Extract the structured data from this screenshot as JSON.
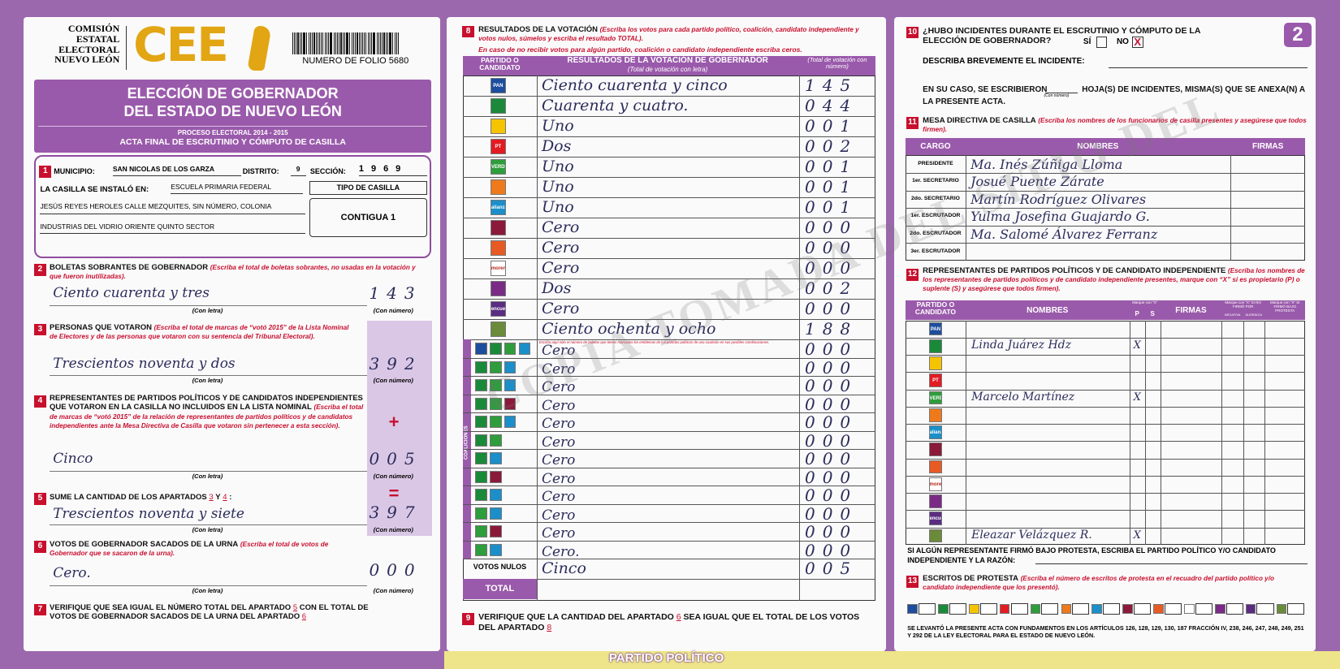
{
  "header": {
    "org_lines": [
      "COMISIÓN",
      "ESTATAL",
      "ELECTORAL",
      "NUEVO LEÓN"
    ],
    "logo": "CEE",
    "folio": "NUMERO DE FOLIO 5680",
    "page_number": "2"
  },
  "title": {
    "lines": [
      "ELECCIÓN DE GOBERNADOR",
      "DEL ESTADO DE NUEVO LEÓN"
    ],
    "process": "PROCESO ELECTORAL 2014 - 2015",
    "act": "ACTA FINAL DE ESCRUTINIO Y CÓMPUTO DE CASILLA"
  },
  "captions": {
    "letter": "(Con letra)",
    "number": "(Con número)"
  },
  "s1": {
    "number": "1",
    "municipio_label": "MUNICIPIO:",
    "municipio": "SAN NICOLAS DE LOS GARZA",
    "distrito_label": "DISTRITO:",
    "distrito": "9",
    "seccion_label": "SECCIÓN:",
    "seccion": "1969",
    "installed_label": "LA CASILLA SE INSTALÓ EN:",
    "address": [
      "ESCUELA PRIMARIA FEDERAL",
      "JESÚS REYES HEROLES CALLE MEZQUITES, SIN NÚMERO, COLONIA",
      "INDUSTRIAS DEL VIDRIO ORIENTE QUINTO SECTOR"
    ],
    "type_label": "TIPO DE CASILLA",
    "type": "CONTIGUA 1"
  },
  "s2": {
    "number": "2",
    "title": "BOLETAS SOBRANTES DE GOBERNADOR",
    "instruction": "(Escriba el total de boletas sobrantes, no usadas en la votación y que fueron inutilizadas).",
    "letter": "Ciento cuarenta y tres",
    "value": "143"
  },
  "s3": {
    "number": "3",
    "title": "PERSONAS QUE VOTARON",
    "instruction": "(Escriba el total de marcas de “votó 2015” de la Lista Nominal de Electores y de las personas que votaron con su sentencia del Tribunal Electoral).",
    "letter": "Trescientos noventa y dos",
    "value": "392"
  },
  "s4": {
    "number": "4",
    "title": "REPRESENTANTES DE PARTIDOS POLÍTICOS Y DE CANDIDATOS INDEPENDIENTES QUE VOTARON EN LA CASILLA NO INCLUIDOS EN LA LISTA NOMINAL",
    "instruction": "(Escriba el total de marcas de “votó 2015” de la relación de representantes de partidos políticos y de candidatos independientes ante la Mesa Directiva de Casilla que votaron sin pertenecer a esta sección).",
    "sign": "+",
    "letter": "Cinco",
    "value": "005"
  },
  "s5": {
    "number": "5",
    "text_parts": [
      "SUME LA CANTIDAD DE LOS APARTADOS",
      "3",
      "Y",
      "4",
      ":"
    ],
    "sign": "=",
    "letter": "Trescientos noventa y siete",
    "value": "397"
  },
  "s6": {
    "number": "6",
    "title": "VOTOS DE GOBERNADOR SACADOS DE LA URNA",
    "instruction": "(Escriba el total de votos de Gobernador que se sacaron de la urna).",
    "letter": "Cero.",
    "value": "000"
  },
  "s7": {
    "number": "7",
    "text_parts": [
      "VERIFIQUE QUE SEA IGUAL EL NÚMERO TOTAL DEL APARTADO",
      "5",
      "CON EL TOTAL DE VOTOS DE GOBERNADOR SACADOS DE LA URNA DEL APARTADO",
      "6"
    ]
  },
  "s8": {
    "number": "8",
    "title": "RESULTADOS DE LA VOTACIÓN",
    "instruction": "(Escriba los votos para cada partido político, coalición, candidato independiente y votos nulos, súmelos y escriba el resultado TOTAL).",
    "note": "En caso de no recibir votos para algún partido, coalición o candidato independiente escriba ceros.",
    "headers": {
      "party": "PARTIDO O CANDIDATO",
      "result": "RESULTADOS DE LA VOTACIÓN DE GOBERNADOR",
      "result_sub": "(Total de votación con letra)",
      "number": "(Total de votación con número)"
    },
    "parties": [
      {
        "logo": "PAN",
        "letter": "Ciento cuarenta y cinco",
        "value": "145"
      },
      {
        "letter": "Cuarenta y cuatro.",
        "value": "044"
      },
      {
        "letter": "Uno",
        "value": "001"
      },
      {
        "logo": "PT",
        "letter": "Dos",
        "value": "002"
      },
      {
        "logo": "VERDE",
        "letter": "Uno",
        "value": "001"
      },
      {
        "letter": "Uno",
        "value": "001"
      },
      {
        "logo": "alianza",
        "letter": "Uno",
        "value": "001"
      },
      {
        "letter": "Cero",
        "value": "000"
      },
      {
        "letter": "Cero",
        "value": "000"
      },
      {
        "logo": "morena",
        "letter": "Cero",
        "value": "000"
      },
      {
        "letter": "Dos",
        "value": "002"
      },
      {
        "logo": "encuentro social",
        "letter": "Cero",
        "value": "000"
      },
      {
        "letter": "Ciento ochenta y ocho",
        "value": "188"
      }
    ],
    "coalition_note": "Escriba aquí sólo el número de boletas que tienen marcados los emblemas de los partidos políticos de una coalición en sus posibles combinaciones.",
    "coalition_label": "COALICIONES",
    "coalitions": [
      {
        "letter": "Cero",
        "value": "000"
      },
      {
        "letter": "Cero",
        "value": "000"
      },
      {
        "letter": "Cero",
        "value": "000"
      },
      {
        "letter": "Cero",
        "value": "000"
      },
      {
        "letter": "Cero",
        "value": "000"
      },
      {
        "letter": "Cero",
        "value": "000"
      },
      {
        "letter": "Cero",
        "value": "000"
      },
      {
        "letter": "Cero",
        "value": "000"
      },
      {
        "letter": "Cero",
        "value": "000"
      },
      {
        "letter": "Cero",
        "value": "000"
      },
      {
        "letter": "Cero",
        "value": "000"
      },
      {
        "letter": "Cero.",
        "value": "000"
      }
    ],
    "null_votes": {
      "label": "VOTOS NULOS",
      "letter": "Cinco",
      "value": "005"
    },
    "total_label": "TOTAL"
  },
  "s9": {
    "number": "9",
    "text_parts": [
      "VERIFIQUE QUE LA CANTIDAD DEL APARTADO",
      "6",
      "SEA IGUAL QUE EL TOTAL DE LOS VOTOS DEL APARTADO",
      "8"
    ]
  },
  "footer": "PARTIDO POLÍTICO",
  "watermark": "COPIA TOMADA DEL SITIO DEL",
  "s10": {
    "number": "10",
    "question": "¿HUBO INCIDENTES DURANTE EL ESCRUTINIO Y CÓMPUTO DE LA ELECCIÓN DE GOBERNADOR?",
    "yes": "SÍ",
    "no": "NO",
    "answer": "X",
    "describe": "DESCRIBA BREVEMENTE EL INCIDENTE:",
    "sheets_parts": [
      "EN SU CASO, SE ESCRIBIERON",
      "HOJA(S) DE INCIDENTES, MISMA(S) QUE SE ANEXA(N) A LA PRESENTE ACTA."
    ]
  },
  "s11": {
    "number": "11",
    "title": "MESA DIRECTIVA DE CASILLA",
    "instruction": "(Escriba los nombres de los funcionarios de casilla presentes y asegúrese que todos firmen).",
    "headers": [
      "CARGO",
      "NOMBRES",
      "FIRMAS"
    ],
    "rows": [
      {
        "role": "PRESIDENTE",
        "name": "Ma. Inés Zúñiga Lloma"
      },
      {
        "role": "1er. SECRETARIO",
        "name": "Josué Puente Zárate"
      },
      {
        "role": "2do. SECRETARIO",
        "name": "Martín Rodríguez Olivares"
      },
      {
        "role": "1er. ESCRUTADOR",
        "name": "Yulma Josefina Guajardo G."
      },
      {
        "role": "2do. ESCRUTADOR",
        "name": "Ma. Salomé Álvarez Ferranz"
      },
      {
        "role": "3er. ESCRUTADOR"
      }
    ]
  },
  "s12": {
    "number": "12",
    "title": "REPRESENTANTES DE PARTIDOS POLÍTICOS Y DE CANDIDATO INDEPENDIENTE",
    "instruction": "(Escriba los nombres de los representantes de partidos políticos y de candidato independiente presentes, marque con “X” si es propietario (P) o suplente (S) y asegúrese que todos firmen).",
    "headers": {
      "party": "PARTIDO O CANDIDATO",
      "names": "NOMBRES",
      "mark": "Marque con “X”",
      "p": "P",
      "s": "S",
      "signatures": "FIRMAS",
      "refused": "Marque con “X” SI NO FIRMÓ POR",
      "negativa": "NEGATIVA",
      "ausencia": "AUSENCIA",
      "protest": "Marque con “X” SI FIRMÓ BAJO PROTESTA"
    },
    "rows": [
      null,
      {
        "name": "Linda Juárez Hdz",
        "p": "X"
      },
      null,
      null,
      {
        "name": "Marcelo Martínez",
        "p": "X"
      },
      null,
      null,
      null,
      null,
      null,
      null,
      null,
      {
        "name": "Eleazar Velázquez R.",
        "p": "X"
      }
    ],
    "protest_note": "SI ALGÚN REPRESENTANTE FIRMÓ BAJO PROTESTA, ESCRIBA EL PARTIDO POLÍTICO Y/O CANDIDATO INDEPENDIENTE Y LA RAZÓN:"
  },
  "s13": {
    "number": "13",
    "title": "ESCRITOS DE PROTESTA",
    "instruction": "(Escriba el número de escritos de protesta en el recuadro del partido político y/o candidato independiente que los presentó)."
  },
  "legal": "SE LEVANTÓ LA PRESENTE ACTA CON FUNDAMENTOS EN LOS ARTÍCULOS 126, 128, 129, 130, 187 FRACCIÓN IV, 238, 246, 247, 248, 249, 251 Y 292 DE LA LEY ELECTORAL PARA EL ESTADO DE NUEVO LEÓN."
}
